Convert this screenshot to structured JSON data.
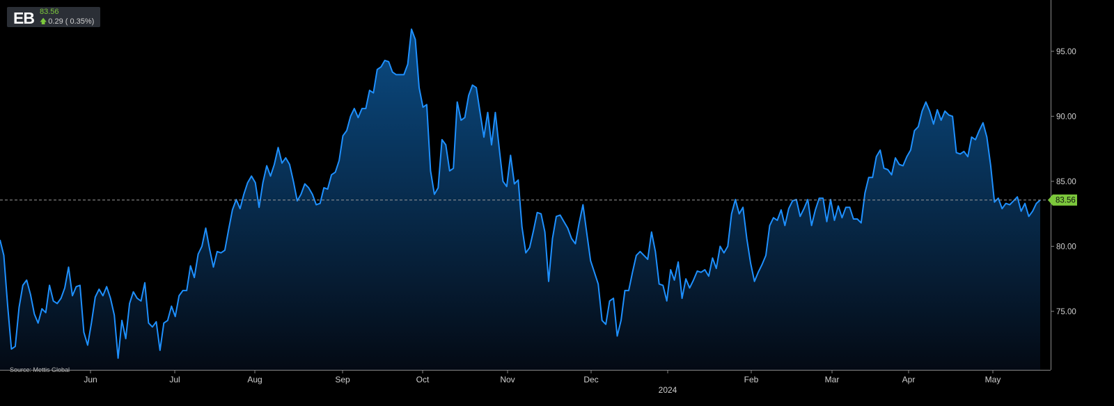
{
  "ticker": {
    "symbol": "EB",
    "price": "83.56",
    "change": "0.29 ( 0.35%)",
    "direction": "up"
  },
  "source_text": "Source: Mettis Global",
  "colors": {
    "background": "#000000",
    "line": "#1e90ff",
    "fill_top": "#0b4f8a",
    "fill_bottom": "#040a14",
    "axis": "#cfcfcf",
    "last_price_label_bg": "#7cc83c",
    "price_up": "#7cc83c"
  },
  "chart_data": {
    "type": "area",
    "title": "",
    "xlabel": "",
    "ylabel": "",
    "ylim": [
      70.5,
      97.5
    ],
    "y_ticks": [
      "75.00",
      "80.00",
      "85.00",
      "90.00",
      "95.00"
    ],
    "x_month_labels": [
      "Jun",
      "Jul",
      "Aug",
      "Sep",
      "Oct",
      "Nov",
      "Dec",
      "2024",
      "Feb",
      "Mar",
      "Apr",
      "May"
    ],
    "last_price": 83.56,
    "last_price_label": "83.56",
    "grid": false,
    "series": [
      {
        "values": [
          80.5,
          79.3,
          75.5,
          72.1,
          72.3,
          75.3,
          77.0,
          77.4,
          76.3,
          74.8,
          74.1,
          75.2,
          74.9,
          77.0,
          75.8,
          75.6,
          76.0,
          76.8,
          78.4,
          76.2,
          76.9,
          77.0,
          73.4,
          72.4,
          74.1,
          76.1,
          76.7,
          76.2,
          76.9,
          76.0,
          74.7,
          71.4,
          74.3,
          72.9,
          75.6,
          76.5,
          76.0,
          75.8,
          77.2,
          74.1,
          73.8,
          74.2,
          72.0,
          74.1,
          74.3,
          75.4,
          74.6,
          76.2,
          76.6,
          76.6,
          78.5,
          77.6,
          79.4,
          80.0,
          81.4,
          79.8,
          78.4,
          79.6,
          79.5,
          79.7,
          81.3,
          82.8,
          83.6,
          82.9,
          84.0,
          84.9,
          85.4,
          84.9,
          83.0,
          84.9,
          86.2,
          85.4,
          86.3,
          87.6,
          86.4,
          86.8,
          86.3,
          85.0,
          83.5,
          84.0,
          84.8,
          84.5,
          84.0,
          83.2,
          83.3,
          84.5,
          84.4,
          85.5,
          85.7,
          86.6,
          88.5,
          88.9,
          90.0,
          90.6,
          89.9,
          90.6,
          90.6,
          92.0,
          91.8,
          93.6,
          93.8,
          94.3,
          94.2,
          93.4,
          93.2,
          93.2,
          93.2,
          94.0,
          96.7,
          95.9,
          92.2,
          90.7,
          90.9,
          85.8,
          84.0,
          84.5,
          88.2,
          87.8,
          85.8,
          86.0,
          91.1,
          89.7,
          89.9,
          91.6,
          92.4,
          92.2,
          90.3,
          88.4,
          90.3,
          87.8,
          90.3,
          87.6,
          85.0,
          84.6,
          87.0,
          84.8,
          85.1,
          81.5,
          79.5,
          79.9,
          81.2,
          82.6,
          82.5,
          81.1,
          77.3,
          80.6,
          82.3,
          82.4,
          81.9,
          81.4,
          80.6,
          80.2,
          81.8,
          83.2,
          81.0,
          78.9,
          78.0,
          77.1,
          74.3,
          74.0,
          75.8,
          76.0,
          73.1,
          74.3,
          76.6,
          76.6,
          78.0,
          79.3,
          79.6,
          79.3,
          79.0,
          81.1,
          79.6,
          77.1,
          77.0,
          75.8,
          78.2,
          77.4,
          78.8,
          76.0,
          77.5,
          76.8,
          77.4,
          78.1,
          78.0,
          78.2,
          77.7,
          79.1,
          78.3,
          80.0,
          79.5,
          80.0,
          82.5,
          83.6,
          82.5,
          83.0,
          80.6,
          78.7,
          77.3,
          78.0,
          78.6,
          79.3,
          81.6,
          82.2,
          82.0,
          82.8,
          81.6,
          82.9,
          83.5,
          83.6,
          82.3,
          82.9,
          83.6,
          81.6,
          82.8,
          83.7,
          83.7,
          81.9,
          83.6,
          82.0,
          83.1,
          82.2,
          83.0,
          83.0,
          82.1,
          82.1,
          81.8,
          84.1,
          85.3,
          85.3,
          86.9,
          87.4,
          86.0,
          85.9,
          85.5,
          86.8,
          86.3,
          86.2,
          86.9,
          87.4,
          88.9,
          89.2,
          90.4,
          91.1,
          90.4,
          89.4,
          90.5,
          89.7,
          90.4,
          90.1,
          90.0,
          87.2,
          87.1,
          87.3,
          86.9,
          88.4,
          88.2,
          88.9,
          89.5,
          88.4,
          86.2,
          83.4,
          83.7,
          82.9,
          83.3,
          83.2,
          83.5,
          83.8,
          82.7,
          83.3,
          82.3,
          82.7,
          83.3,
          83.56
        ]
      }
    ]
  }
}
